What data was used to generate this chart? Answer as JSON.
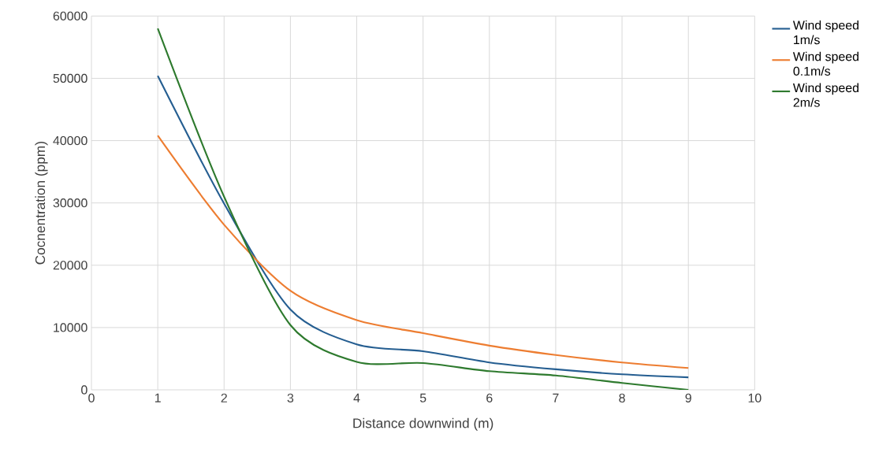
{
  "chart_data": {
    "type": "line",
    "xlabel": "Distance downwind (m)",
    "ylabel": "Cocnentration (ppm)",
    "x": [
      1,
      2,
      3,
      4,
      5,
      6,
      7,
      8,
      9
    ],
    "series": [
      {
        "name": "Wind speed 1m/s",
        "color": "#255e91",
        "values": [
          50400,
          29900,
          12900,
          7300,
          6200,
          4400,
          3300,
          2500,
          2000
        ]
      },
      {
        "name": "Wind speed 0.1m/s",
        "color": "#ed7d31",
        "values": [
          40800,
          26500,
          15900,
          11200,
          9100,
          7100,
          5600,
          4400,
          3500
        ]
      },
      {
        "name": "Wind speed 2m/s",
        "color": "#2e7a2e",
        "values": [
          58000,
          31000,
          10400,
          4500,
          4300,
          3000,
          2300,
          1100,
          0
        ]
      }
    ],
    "xlim": [
      0,
      10
    ],
    "xticks": [
      0,
      1,
      2,
      3,
      4,
      5,
      6,
      7,
      8,
      9,
      10
    ],
    "ylim": [
      0,
      60000
    ],
    "yticks": [
      0,
      10000,
      20000,
      30000,
      40000,
      50000,
      60000
    ],
    "grid": true,
    "legend": "right"
  }
}
